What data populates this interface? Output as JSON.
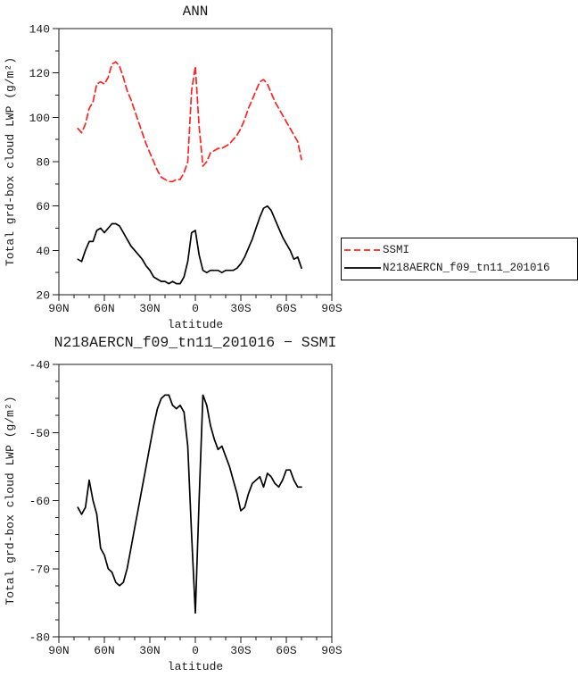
{
  "figure": {
    "background": "#ffffff",
    "text_color": "#1a1a1a"
  },
  "chart_data": [
    {
      "type": "line",
      "title": "ANN",
      "xlabel": "latitude",
      "ylabel": "Total grd-box cloud LWP (g/m²)",
      "xlim": [
        90,
        -90
      ],
      "ylim": [
        20,
        140
      ],
      "xticks": [
        90,
        60,
        30,
        0,
        -30,
        -60,
        -90
      ],
      "xtick_labels": [
        "90N",
        "60N",
        "30N",
        "0",
        "30S",
        "60S",
        "90S"
      ],
      "yticks": [
        20,
        40,
        60,
        80,
        100,
        120,
        140
      ],
      "ytick_labels": [
        "20",
        "40",
        "60",
        "80",
        "100",
        "120",
        "140"
      ],
      "grid": false,
      "legend_position": "right-outside",
      "x": [
        77.5,
        75,
        72.5,
        70,
        67.5,
        65,
        62.5,
        60,
        57.5,
        55,
        52.5,
        50,
        47.5,
        45,
        42.5,
        40,
        37.5,
        35,
        32.5,
        30,
        27.5,
        25,
        22.5,
        20,
        17.5,
        15,
        12.5,
        10,
        7.5,
        5,
        2.5,
        0,
        -2.5,
        -5,
        -7.5,
        -10,
        -12.5,
        -15,
        -17.5,
        -20,
        -22.5,
        -25,
        -27.5,
        -30,
        -32.5,
        -35,
        -37.5,
        -40,
        -42.5,
        -45,
        -47.5,
        -50,
        -52.5,
        -55,
        -57.5,
        -60,
        -62.5,
        -65,
        -67.5,
        -70
      ],
      "series": [
        {
          "name": "SSMI",
          "color": "#ff2222",
          "dash": "7,4",
          "values": [
            95,
            93,
            97,
            104,
            107,
            115,
            116,
            115,
            118,
            124,
            125,
            123,
            118,
            112,
            108,
            103,
            98,
            93,
            88,
            84,
            80,
            76,
            73,
            72,
            71,
            71,
            72,
            72,
            75,
            80,
            112,
            123,
            96,
            78,
            80,
            84,
            85,
            86,
            86,
            87,
            88,
            90,
            92,
            95,
            99,
            104,
            108,
            112,
            116,
            117,
            115,
            111,
            107,
            104,
            101,
            98,
            95,
            92,
            89,
            81
          ]
        },
        {
          "name": "N218AERCN_f09_tn11_201016",
          "color": "#000000",
          "dash": "",
          "values": [
            36,
            35,
            40,
            44,
            44,
            49,
            50,
            48,
            50,
            52,
            52,
            51,
            48,
            45,
            42,
            40,
            38,
            36,
            33,
            31,
            28,
            27,
            26,
            26,
            25,
            26,
            25,
            25,
            28,
            35,
            48,
            49,
            38,
            31,
            30,
            31,
            31,
            31,
            30,
            31,
            31,
            31,
            32,
            34,
            37,
            41,
            45,
            50,
            55,
            59,
            60,
            58,
            54,
            50,
            46,
            43,
            40,
            36,
            37,
            32
          ]
        }
      ]
    },
    {
      "type": "line",
      "title": "N218AERCN_f09_tn11_201016 − SSMI",
      "xlabel": "latitude",
      "ylabel": "Total grd-box cloud LWP (g/m²)",
      "xlim": [
        90,
        -90
      ],
      "ylim": [
        -80,
        -40
      ],
      "xticks": [
        90,
        60,
        30,
        0,
        -30,
        -60,
        -90
      ],
      "xtick_labels": [
        "90N",
        "60N",
        "30N",
        "0",
        "30S",
        "60S",
        "90S"
      ],
      "yticks": [
        -80,
        -70,
        -60,
        -50,
        -40
      ],
      "ytick_labels": [
        "-80",
        "-70",
        "-60",
        "-50",
        "-40"
      ],
      "grid": false,
      "x": [
        77.5,
        75,
        72.5,
        70,
        67.5,
        65,
        62.5,
        60,
        57.5,
        55,
        52.5,
        50,
        47.5,
        45,
        42.5,
        40,
        37.5,
        35,
        32.5,
        30,
        27.5,
        25,
        22.5,
        20,
        17.5,
        15,
        12.5,
        10,
        7.5,
        5,
        2.5,
        0,
        -2.5,
        -5,
        -7.5,
        -10,
        -12.5,
        -15,
        -17.5,
        -20,
        -22.5,
        -25,
        -27.5,
        -30,
        -32.5,
        -35,
        -37.5,
        -40,
        -42.5,
        -45,
        -47.5,
        -50,
        -52.5,
        -55,
        -57.5,
        -60,
        -62.5,
        -65,
        -67.5,
        -70
      ],
      "series": [
        {
          "name": "N218AERCN_f09_tn11_201016 - SSMI",
          "color": "#000000",
          "dash": "",
          "values": [
            -61,
            -62,
            -61,
            -57,
            -60,
            -62,
            -67,
            -68,
            -70,
            -70.5,
            -72,
            -72.5,
            -72,
            -70,
            -67,
            -64,
            -61,
            -58,
            -55,
            -52,
            -49,
            -46.5,
            -45,
            -44.5,
            -44.5,
            -46,
            -46.5,
            -46,
            -47,
            -52,
            -65,
            -76.5,
            -60,
            -44.5,
            -46,
            -49,
            -51,
            -52.5,
            -52,
            -53.5,
            -55,
            -57,
            -59,
            -61.5,
            -61,
            -59,
            -57.5,
            -57,
            -56.5,
            -58,
            -56,
            -56.5,
            -57.5,
            -58,
            -57,
            -55.5,
            -55.5,
            -57,
            -58,
            -58
          ]
        }
      ]
    }
  ]
}
